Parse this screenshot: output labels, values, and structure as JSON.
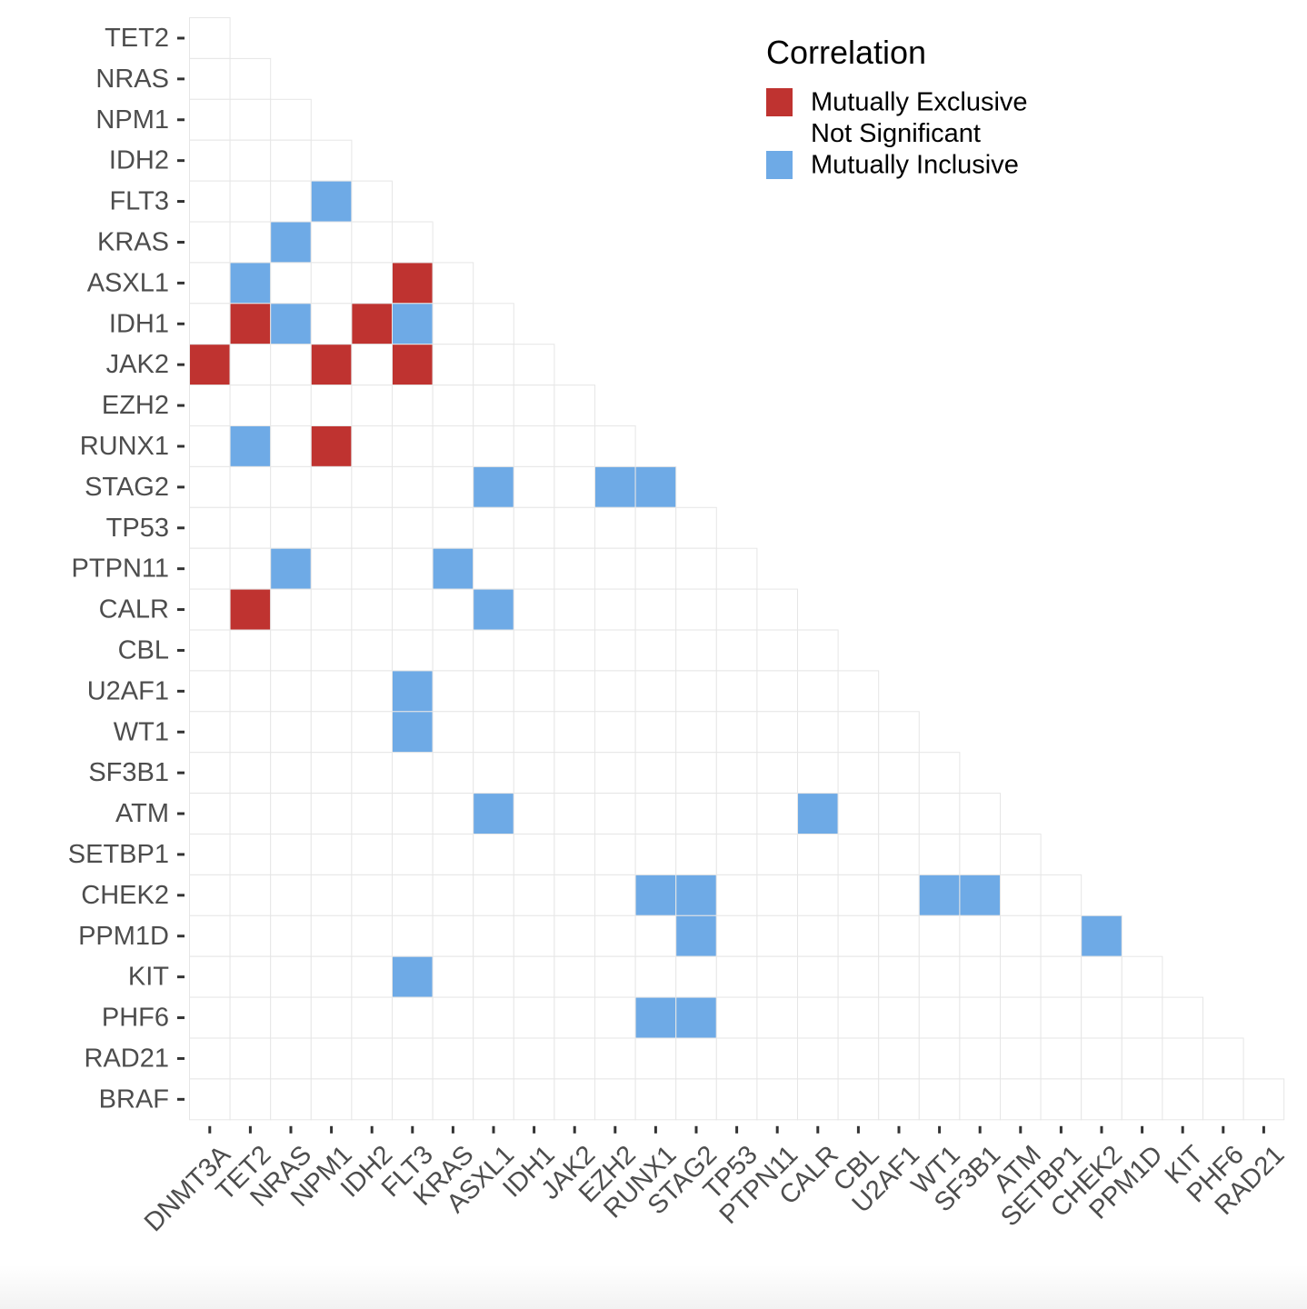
{
  "chart_data": {
    "type": "heatmap",
    "title": "",
    "xlabel": "",
    "ylabel": "",
    "x_genes": [
      "DNMT3A",
      "TET2",
      "NRAS",
      "NPM1",
      "IDH2",
      "FLT3",
      "KRAS",
      "ASXL1",
      "IDH1",
      "JAK2",
      "EZH2",
      "RUNX1",
      "STAG2",
      "TP53",
      "PTPN11",
      "CALR",
      "CBL",
      "U2AF1",
      "WT1",
      "SF3B1",
      "ATM",
      "SETBP1",
      "CHEK2",
      "PPM1D",
      "KIT",
      "PHF6",
      "RAD21"
    ],
    "y_genes": [
      "TET2",
      "NRAS",
      "NPM1",
      "IDH2",
      "FLT3",
      "KRAS",
      "ASXL1",
      "IDH1",
      "JAK2",
      "EZH2",
      "RUNX1",
      "STAG2",
      "TP53",
      "PTPN11",
      "CALR",
      "CBL",
      "U2AF1",
      "WT1",
      "SF3B1",
      "ATM",
      "SETBP1",
      "CHEK2",
      "PPM1D",
      "KIT",
      "PHF6",
      "RAD21",
      "BRAF"
    ],
    "default_category": "Not Significant",
    "significant_cells": [
      {
        "y": "FLT3",
        "x": "NPM1",
        "category": "Mutually Inclusive"
      },
      {
        "y": "KRAS",
        "x": "NRAS",
        "category": "Mutually Inclusive"
      },
      {
        "y": "ASXL1",
        "x": "TET2",
        "category": "Mutually Inclusive"
      },
      {
        "y": "ASXL1",
        "x": "FLT3",
        "category": "Mutually Exclusive"
      },
      {
        "y": "IDH1",
        "x": "TET2",
        "category": "Mutually Exclusive"
      },
      {
        "y": "IDH1",
        "x": "NRAS",
        "category": "Mutually Inclusive"
      },
      {
        "y": "IDH1",
        "x": "IDH2",
        "category": "Mutually Exclusive"
      },
      {
        "y": "IDH1",
        "x": "FLT3",
        "category": "Mutually Inclusive"
      },
      {
        "y": "JAK2",
        "x": "DNMT3A",
        "category": "Mutually Exclusive"
      },
      {
        "y": "JAK2",
        "x": "NPM1",
        "category": "Mutually Exclusive"
      },
      {
        "y": "JAK2",
        "x": "FLT3",
        "category": "Mutually Exclusive"
      },
      {
        "y": "RUNX1",
        "x": "TET2",
        "category": "Mutually Inclusive"
      },
      {
        "y": "RUNX1",
        "x": "NPM1",
        "category": "Mutually Exclusive"
      },
      {
        "y": "STAG2",
        "x": "ASXL1",
        "category": "Mutually Inclusive"
      },
      {
        "y": "STAG2",
        "x": "EZH2",
        "category": "Mutually Inclusive"
      },
      {
        "y": "STAG2",
        "x": "RUNX1",
        "category": "Mutually Inclusive"
      },
      {
        "y": "PTPN11",
        "x": "NRAS",
        "category": "Mutually Inclusive"
      },
      {
        "y": "PTPN11",
        "x": "KRAS",
        "category": "Mutually Inclusive"
      },
      {
        "y": "CALR",
        "x": "TET2",
        "category": "Mutually Exclusive"
      },
      {
        "y": "CALR",
        "x": "ASXL1",
        "category": "Mutually Inclusive"
      },
      {
        "y": "U2AF1",
        "x": "FLT3",
        "category": "Mutually Inclusive"
      },
      {
        "y": "WT1",
        "x": "FLT3",
        "category": "Mutually Inclusive"
      },
      {
        "y": "ATM",
        "x": "ASXL1",
        "category": "Mutually Inclusive"
      },
      {
        "y": "ATM",
        "x": "CALR",
        "category": "Mutually Inclusive"
      },
      {
        "y": "CHEK2",
        "x": "RUNX1",
        "category": "Mutually Inclusive"
      },
      {
        "y": "CHEK2",
        "x": "STAG2",
        "category": "Mutually Inclusive"
      },
      {
        "y": "CHEK2",
        "x": "WT1",
        "category": "Mutually Inclusive"
      },
      {
        "y": "CHEK2",
        "x": "SF3B1",
        "category": "Mutually Inclusive"
      },
      {
        "y": "PPM1D",
        "x": "STAG2",
        "category": "Mutually Inclusive"
      },
      {
        "y": "PPM1D",
        "x": "CHEK2",
        "category": "Mutually Inclusive"
      },
      {
        "y": "KIT",
        "x": "FLT3",
        "category": "Mutually Inclusive"
      },
      {
        "y": "PHF6",
        "x": "RUNX1",
        "category": "Mutually Inclusive"
      },
      {
        "y": "PHF6",
        "x": "STAG2",
        "category": "Mutually Inclusive"
      }
    ],
    "legend": {
      "title": "Correlation",
      "position": "top-right",
      "entries": [
        {
          "label": "Mutually Exclusive",
          "color": "#bf3330"
        },
        {
          "label": "Not Significant",
          "color": "#ffffff"
        },
        {
          "label": "Mutually Inclusive",
          "color": "#6eaae6"
        }
      ]
    },
    "grid_color": "#e6e6e6",
    "tick_label_color": "#4d4d4d",
    "x_label_rotation_deg": 45
  }
}
